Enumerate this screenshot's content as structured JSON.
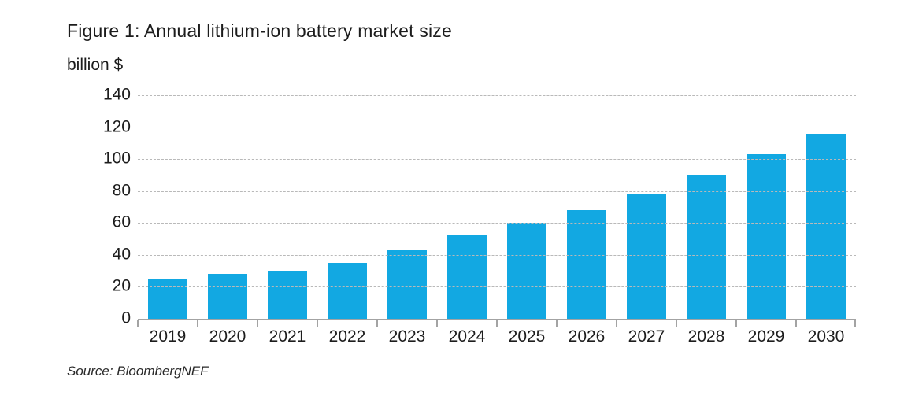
{
  "figure": {
    "title": "Figure 1: Annual lithium-ion battery market size",
    "unit_label": "billion $",
    "source": "Source: BloombergNEF"
  },
  "chart_data": {
    "type": "bar",
    "title": "Figure 1: Annual lithium-ion battery market size",
    "ylabel": "billion $",
    "xlabel": "",
    "categories": [
      "2019",
      "2020",
      "2021",
      "2022",
      "2023",
      "2024",
      "2025",
      "2026",
      "2027",
      "2028",
      "2029",
      "2030"
    ],
    "values": [
      25,
      28,
      30,
      35,
      43,
      53,
      60,
      68,
      78,
      90,
      103,
      116
    ],
    "ylim": [
      0,
      140
    ],
    "yticks": [
      0,
      20,
      40,
      60,
      80,
      100,
      120,
      140
    ],
    "grid": "horizontal-dashed",
    "legend": "none",
    "source": "Source: BloombergNEF"
  },
  "colors": {
    "bar": "#12a8e2",
    "grid": "#b9b9b9",
    "axis": "#a3a3a3",
    "text": "#1d1d1d"
  }
}
